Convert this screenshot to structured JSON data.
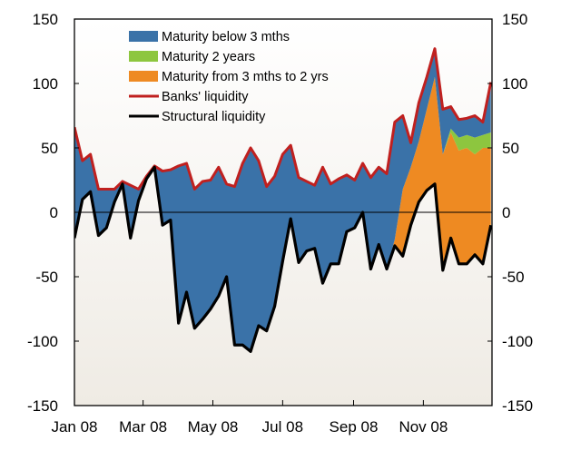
{
  "chart_data": {
    "type": "area",
    "title": "",
    "xlabel": "",
    "ylabel": "",
    "ylim": [
      -150,
      150
    ],
    "yticks": [
      150,
      100,
      50,
      0,
      -50,
      -100,
      -150
    ],
    "xlim": [
      "2008-01-01",
      "2008-12-31"
    ],
    "xticks": [
      {
        "date": "2008-01-01",
        "label": "Jan 08"
      },
      {
        "date": "2008-03-01",
        "label": "Mar 08"
      },
      {
        "date": "2008-05-01",
        "label": "May 08"
      },
      {
        "date": "2008-07-01",
        "label": "Jul 08"
      },
      {
        "date": "2008-09-01",
        "label": "Sep 08"
      },
      {
        "date": "2008-11-01",
        "label": "Nov 08"
      }
    ],
    "grid": false,
    "zero_line": true,
    "dual_y_axis": true,
    "legend_position": "top-left",
    "legend": [
      {
        "key": "below_3m",
        "label": "Maturity below 3 mths",
        "kind": "area",
        "color": "#3a72a8"
      },
      {
        "key": "two_years",
        "label": "Maturity 2 years",
        "kind": "area",
        "color": "#8dc63f"
      },
      {
        "key": "from_3m_to_2y",
        "label": "Maturity from 3 mths to 2 yrs",
        "kind": "area",
        "color": "#ee8a22"
      },
      {
        "key": "banks",
        "label": "Banks' liquidity",
        "kind": "line",
        "color": "#c0201f"
      },
      {
        "key": "structural",
        "label": "Structural liquidity",
        "kind": "line",
        "color": "#000000"
      }
    ],
    "dates": [
      "2008-01-01",
      "2008-01-08",
      "2008-01-15",
      "2008-01-22",
      "2008-01-29",
      "2008-02-05",
      "2008-02-12",
      "2008-02-19",
      "2008-02-26",
      "2008-03-04",
      "2008-03-11",
      "2008-03-18",
      "2008-03-25",
      "2008-04-01",
      "2008-04-08",
      "2008-04-15",
      "2008-04-22",
      "2008-04-29",
      "2008-05-06",
      "2008-05-13",
      "2008-05-20",
      "2008-05-27",
      "2008-06-03",
      "2008-06-10",
      "2008-06-17",
      "2008-06-24",
      "2008-07-01",
      "2008-07-08",
      "2008-07-15",
      "2008-07-22",
      "2008-07-29",
      "2008-08-05",
      "2008-08-12",
      "2008-08-19",
      "2008-08-26",
      "2008-09-02",
      "2008-09-09",
      "2008-09-16",
      "2008-09-23",
      "2008-09-30",
      "2008-10-07",
      "2008-10-14",
      "2008-10-21",
      "2008-10-28",
      "2008-11-04",
      "2008-11-11",
      "2008-11-18",
      "2008-11-25",
      "2008-12-02",
      "2008-12-09",
      "2008-12-16",
      "2008-12-23",
      "2008-12-30"
    ],
    "series": {
      "structural": [
        -20,
        10,
        16,
        -18,
        -12,
        8,
        22,
        -20,
        9,
        26,
        35,
        -10,
        -6,
        -86,
        -62,
        -90,
        -83,
        -75,
        -65,
        -50,
        -103,
        -103,
        -108,
        -88,
        -92,
        -73,
        -38,
        -5,
        -39,
        -30,
        -28,
        -55,
        -40,
        -40,
        -15,
        -12,
        0,
        -44,
        -25,
        -44,
        -26,
        -34,
        -10,
        8,
        17,
        22,
        -45,
        -20,
        -40,
        -40,
        -33,
        -40,
        -10
      ],
      "from_3m_to_2y": [
        0,
        0,
        0,
        0,
        0,
        0,
        0,
        0,
        0,
        0,
        0,
        0,
        0,
        0,
        0,
        0,
        0,
        0,
        0,
        0,
        0,
        0,
        0,
        0,
        0,
        0,
        0,
        0,
        0,
        0,
        0,
        0,
        0,
        0,
        0,
        0,
        0,
        0,
        0,
        0,
        5,
        52,
        45,
        47,
        63,
        83,
        90,
        82,
        88,
        90,
        78,
        90,
        60
      ],
      "two_years": [
        0,
        0,
        0,
        0,
        0,
        0,
        0,
        0,
        0,
        0,
        0,
        0,
        0,
        0,
        0,
        0,
        0,
        0,
        0,
        0,
        0,
        0,
        0,
        0,
        0,
        0,
        0,
        0,
        0,
        0,
        0,
        0,
        0,
        0,
        0,
        0,
        0,
        0,
        0,
        0,
        0,
        0,
        0,
        0,
        0,
        0,
        0,
        3,
        10,
        10,
        13,
        10,
        12
      ],
      "below_3m": [
        86,
        30,
        29,
        36,
        30,
        10,
        2,
        41,
        9,
        2,
        1,
        42,
        39,
        122,
        100,
        108,
        107,
        100,
        100,
        72,
        123,
        141,
        158,
        128,
        112,
        101,
        83,
        57,
        66,
        54,
        49,
        90,
        62,
        66,
        44,
        37,
        38,
        71,
        60,
        74,
        91,
        57,
        19,
        30,
        25,
        22,
        35,
        17,
        14,
        13,
        17,
        10,
        39
      ],
      "banks": [
        66,
        40,
        45,
        18,
        18,
        18,
        24,
        21,
        18,
        28,
        36,
        32,
        33,
        36,
        38,
        18,
        24,
        25,
        35,
        22,
        20,
        38,
        50,
        40,
        20,
        28,
        45,
        52,
        27,
        24,
        21,
        35,
        22,
        26,
        29,
        25,
        38,
        27,
        35,
        30,
        70,
        75,
        54,
        85,
        105,
        127,
        80,
        82,
        72,
        73,
        75,
        70,
        101
      ]
    }
  }
}
